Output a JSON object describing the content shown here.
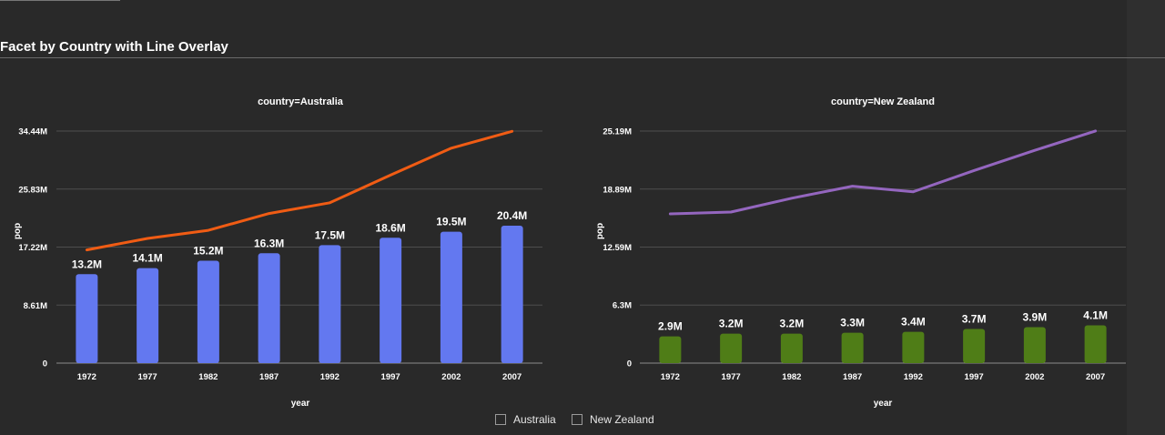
{
  "title": "Facet by Country with Line Overlay",
  "chart_data": {
    "type": "bar",
    "xlabel": "year",
    "ylabel": "pop",
    "categories": [
      "1972",
      "1977",
      "1982",
      "1987",
      "1992",
      "1997",
      "2002",
      "2007"
    ],
    "legend": {
      "placement": "bottom-center",
      "items": [
        "Australia",
        "New Zealand"
      ]
    },
    "facets": [
      {
        "title": "country=Australia",
        "ylim": [
          0,
          34.44
        ],
        "yticks": [
          0,
          8.61,
          17.22,
          25.83,
          34.44
        ],
        "yticklabels": [
          "0",
          "8.61M",
          "17.22M",
          "25.83M",
          "34.44M"
        ],
        "bar_color": "#6378f0",
        "line_color": "#f05c14",
        "bar_values": [
          13.2,
          14.1,
          15.2,
          16.3,
          17.5,
          18.6,
          19.5,
          20.4
        ],
        "bar_labels": [
          "13.2M",
          "14.1M",
          "15.2M",
          "16.3M",
          "17.5M",
          "18.6M",
          "19.5M",
          "20.4M"
        ],
        "line_values": [
          16.8,
          18.5,
          19.7,
          22.2,
          23.8,
          27.9,
          31.9,
          34.4
        ]
      },
      {
        "title": "country=New Zealand",
        "ylim": [
          0,
          25.19
        ],
        "yticks": [
          0,
          6.3,
          12.59,
          18.89,
          25.19
        ],
        "yticklabels": [
          "0",
          "6.3M",
          "12.59M",
          "18.89M",
          "25.19M"
        ],
        "bar_color": "#4f7d17",
        "line_color": "#9466bf",
        "bar_values": [
          2.9,
          3.2,
          3.2,
          3.3,
          3.4,
          3.7,
          3.9,
          4.1
        ],
        "bar_labels": [
          "2.9M",
          "3.2M",
          "3.2M",
          "3.3M",
          "3.4M",
          "3.7M",
          "3.9M",
          "4.1M"
        ],
        "line_values": [
          16.2,
          16.4,
          17.9,
          19.2,
          18.6,
          20.9,
          23.1,
          25.2
        ]
      }
    ]
  }
}
